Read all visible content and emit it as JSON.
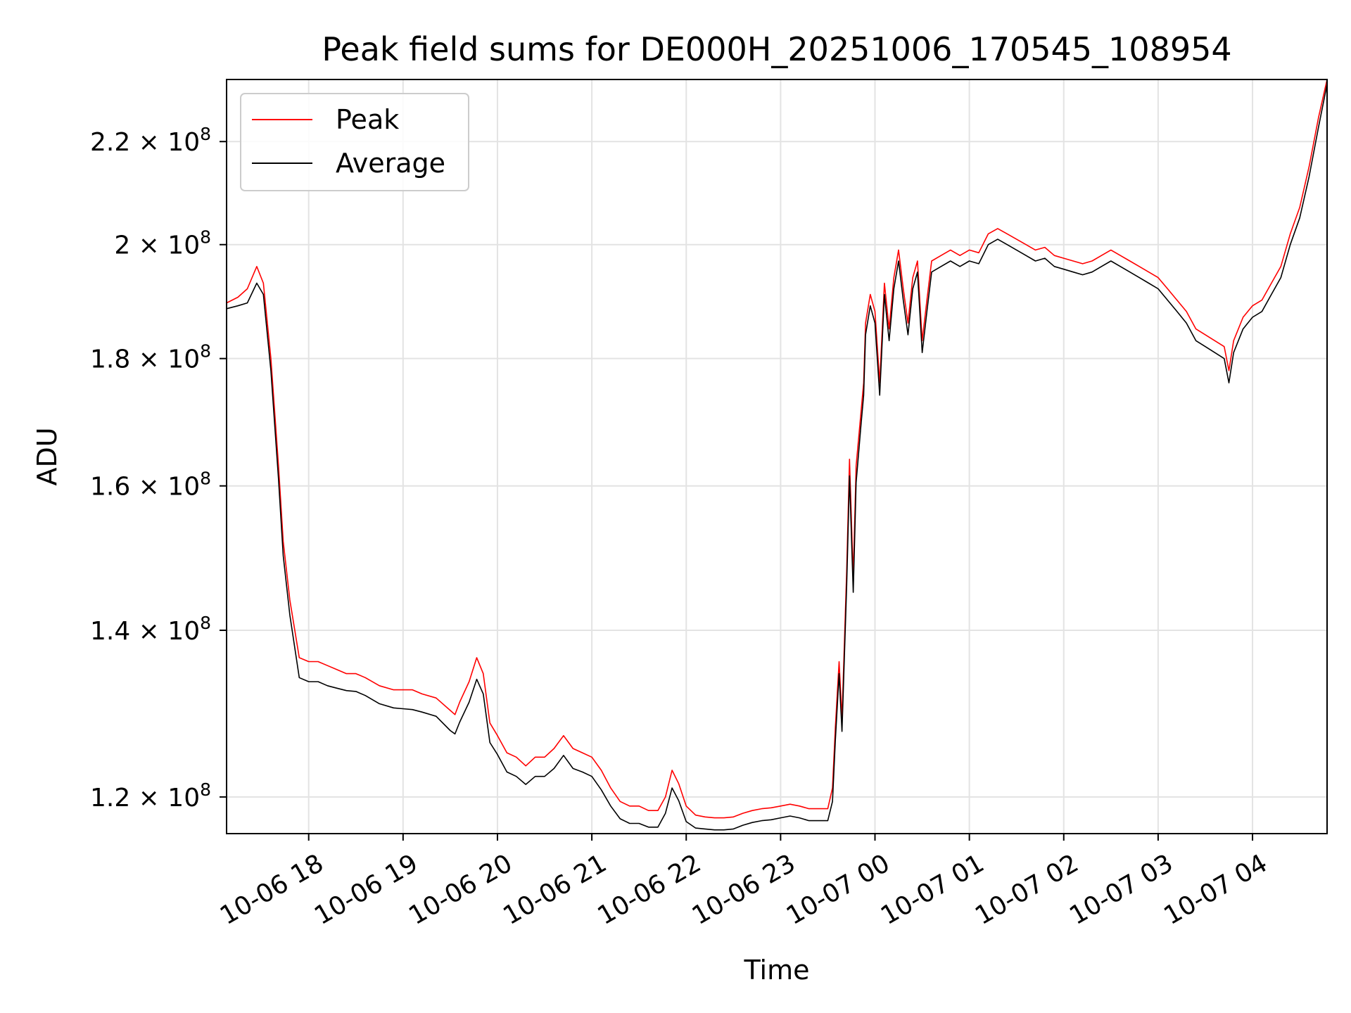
{
  "chart_data": {
    "type": "line",
    "title": "Peak field sums for DE000H_20251006_170545_108954",
    "xlabel": "Time",
    "ylabel": "ADU",
    "x_unit": "hours since 2025-10-06 00:00",
    "xlim": [
      17.13,
      28.79
    ],
    "ylim": [
      116000000,
      233000000
    ],
    "yscale": "log",
    "grid": true,
    "legend_position": "top-left",
    "x_ticks": [
      {
        "value": 18,
        "label": "10-06 18"
      },
      {
        "value": 19,
        "label": "10-06 19"
      },
      {
        "value": 20,
        "label": "10-06 20"
      },
      {
        "value": 21,
        "label": "10-06 21"
      },
      {
        "value": 22,
        "label": "10-06 22"
      },
      {
        "value": 23,
        "label": "10-06 23"
      },
      {
        "value": 24,
        "label": "10-07 00"
      },
      {
        "value": 25,
        "label": "10-07 01"
      },
      {
        "value": 26,
        "label": "10-07 02"
      },
      {
        "value": 27,
        "label": "10-07 03"
      },
      {
        "value": 28,
        "label": "10-07 04"
      }
    ],
    "y_ticks": [
      {
        "value": 120000000,
        "mantissa": "1.2",
        "exponent": "8"
      },
      {
        "value": 140000000,
        "mantissa": "1.4",
        "exponent": "8"
      },
      {
        "value": 160000000,
        "mantissa": "1.6",
        "exponent": "8"
      },
      {
        "value": 180000000,
        "mantissa": "1.8",
        "exponent": "8"
      },
      {
        "value": 200000000,
        "mantissa": "2",
        "exponent": "8"
      },
      {
        "value": 220000000,
        "mantissa": "2.2",
        "exponent": "8"
      }
    ],
    "series": [
      {
        "name": "Peak",
        "color": "#ff0000",
        "points": [
          [
            17.13,
            189500000
          ],
          [
            17.25,
            190500000
          ],
          [
            17.35,
            192000000
          ],
          [
            17.45,
            196000000
          ],
          [
            17.52,
            193000000
          ],
          [
            17.6,
            180000000
          ],
          [
            17.68,
            163000000
          ],
          [
            17.73,
            152000000
          ],
          [
            17.8,
            144000000
          ],
          [
            17.9,
            136500000
          ],
          [
            18.0,
            136000000
          ],
          [
            18.1,
            136000000
          ],
          [
            18.2,
            135500000
          ],
          [
            18.3,
            135000000
          ],
          [
            18.4,
            134500000
          ],
          [
            18.5,
            134500000
          ],
          [
            18.6,
            134000000
          ],
          [
            18.75,
            133000000
          ],
          [
            18.9,
            132500000
          ],
          [
            19.0,
            132500000
          ],
          [
            19.1,
            132500000
          ],
          [
            19.2,
            132000000
          ],
          [
            19.35,
            131500000
          ],
          [
            19.5,
            130000000
          ],
          [
            19.55,
            129500000
          ],
          [
            19.6,
            131000000
          ],
          [
            19.7,
            133500000
          ],
          [
            19.78,
            136500000
          ],
          [
            19.85,
            134500000
          ],
          [
            19.92,
            128500000
          ],
          [
            20.0,
            127000000
          ],
          [
            20.1,
            125000000
          ],
          [
            20.2,
            124500000
          ],
          [
            20.3,
            123500000
          ],
          [
            20.4,
            124500000
          ],
          [
            20.5,
            124500000
          ],
          [
            20.6,
            125500000
          ],
          [
            20.7,
            127000000
          ],
          [
            20.8,
            125500000
          ],
          [
            20.9,
            125000000
          ],
          [
            21.0,
            124500000
          ],
          [
            21.1,
            123000000
          ],
          [
            21.2,
            121000000
          ],
          [
            21.3,
            119500000
          ],
          [
            21.4,
            119000000
          ],
          [
            21.5,
            119000000
          ],
          [
            21.6,
            118500000
          ],
          [
            21.7,
            118500000
          ],
          [
            21.78,
            120000000
          ],
          [
            21.85,
            123000000
          ],
          [
            21.92,
            121500000
          ],
          [
            22.0,
            119000000
          ],
          [
            22.1,
            118000000
          ],
          [
            22.2,
            117800000
          ],
          [
            22.3,
            117700000
          ],
          [
            22.4,
            117700000
          ],
          [
            22.5,
            117800000
          ],
          [
            22.6,
            118200000
          ],
          [
            22.7,
            118500000
          ],
          [
            22.8,
            118700000
          ],
          [
            22.9,
            118800000
          ],
          [
            23.0,
            119000000
          ],
          [
            23.1,
            119200000
          ],
          [
            23.2,
            119000000
          ],
          [
            23.3,
            118700000
          ],
          [
            23.5,
            118700000
          ],
          [
            23.55,
            121000000
          ],
          [
            23.58,
            128000000
          ],
          [
            23.62,
            136000000
          ],
          [
            23.65,
            129000000
          ],
          [
            23.7,
            148000000
          ],
          [
            23.73,
            164000000
          ],
          [
            23.77,
            147000000
          ],
          [
            23.8,
            163000000
          ],
          [
            23.85,
            171000000
          ],
          [
            23.88,
            176000000
          ],
          [
            23.9,
            186000000
          ],
          [
            23.95,
            191000000
          ],
          [
            24.0,
            188000000
          ],
          [
            24.05,
            176000000
          ],
          [
            24.1,
            193000000
          ],
          [
            24.15,
            185000000
          ],
          [
            24.2,
            194000000
          ],
          [
            24.25,
            199000000
          ],
          [
            24.3,
            192000000
          ],
          [
            24.35,
            186000000
          ],
          [
            24.4,
            194000000
          ],
          [
            24.45,
            197000000
          ],
          [
            24.5,
            183000000
          ],
          [
            24.55,
            190000000
          ],
          [
            24.6,
            197000000
          ],
          [
            24.7,
            198000000
          ],
          [
            24.8,
            199000000
          ],
          [
            24.9,
            198000000
          ],
          [
            25.0,
            199000000
          ],
          [
            25.1,
            198500000
          ],
          [
            25.2,
            202000000
          ],
          [
            25.3,
            203000000
          ],
          [
            25.4,
            202000000
          ],
          [
            25.5,
            201000000
          ],
          [
            25.6,
            200000000
          ],
          [
            25.7,
            199000000
          ],
          [
            25.8,
            199500000
          ],
          [
            25.9,
            198000000
          ],
          [
            26.0,
            197500000
          ],
          [
            26.1,
            197000000
          ],
          [
            26.2,
            196500000
          ],
          [
            26.3,
            197000000
          ],
          [
            26.4,
            198000000
          ],
          [
            26.5,
            199000000
          ],
          [
            26.6,
            198000000
          ],
          [
            26.7,
            197000000
          ],
          [
            26.8,
            196000000
          ],
          [
            26.9,
            195000000
          ],
          [
            27.0,
            194000000
          ],
          [
            27.1,
            192000000
          ],
          [
            27.2,
            190000000
          ],
          [
            27.3,
            188000000
          ],
          [
            27.4,
            185000000
          ],
          [
            27.5,
            184000000
          ],
          [
            27.6,
            183000000
          ],
          [
            27.7,
            182000000
          ],
          [
            27.75,
            178000000
          ],
          [
            27.8,
            183000000
          ],
          [
            27.9,
            187000000
          ],
          [
            28.0,
            189000000
          ],
          [
            28.1,
            190000000
          ],
          [
            28.2,
            193000000
          ],
          [
            28.3,
            196000000
          ],
          [
            28.4,
            202000000
          ],
          [
            28.5,
            207000000
          ],
          [
            28.6,
            215000000
          ],
          [
            28.7,
            225000000
          ],
          [
            28.79,
            233000000
          ]
        ]
      },
      {
        "name": "Average",
        "color": "#000000",
        "points": [
          [
            17.13,
            188500000
          ],
          [
            17.25,
            189000000
          ],
          [
            17.35,
            189500000
          ],
          [
            17.45,
            193000000
          ],
          [
            17.52,
            191000000
          ],
          [
            17.6,
            178000000
          ],
          [
            17.68,
            161000000
          ],
          [
            17.73,
            150000000
          ],
          [
            17.8,
            142000000
          ],
          [
            17.9,
            134000000
          ],
          [
            18.0,
            133500000
          ],
          [
            18.1,
            133500000
          ],
          [
            18.2,
            133000000
          ],
          [
            18.3,
            132700000
          ],
          [
            18.4,
            132400000
          ],
          [
            18.5,
            132300000
          ],
          [
            18.6,
            131800000
          ],
          [
            18.75,
            130800000
          ],
          [
            18.9,
            130300000
          ],
          [
            19.0,
            130200000
          ],
          [
            19.1,
            130100000
          ],
          [
            19.2,
            129800000
          ],
          [
            19.35,
            129300000
          ],
          [
            19.5,
            127600000
          ],
          [
            19.55,
            127200000
          ],
          [
            19.6,
            128600000
          ],
          [
            19.7,
            131000000
          ],
          [
            19.78,
            133800000
          ],
          [
            19.85,
            132000000
          ],
          [
            19.92,
            126200000
          ],
          [
            20.0,
            124800000
          ],
          [
            20.1,
            122800000
          ],
          [
            20.2,
            122300000
          ],
          [
            20.3,
            121400000
          ],
          [
            20.4,
            122300000
          ],
          [
            20.5,
            122300000
          ],
          [
            20.6,
            123200000
          ],
          [
            20.7,
            124700000
          ],
          [
            20.8,
            123200000
          ],
          [
            20.9,
            122800000
          ],
          [
            21.0,
            122300000
          ],
          [
            21.1,
            120800000
          ],
          [
            21.2,
            119000000
          ],
          [
            21.3,
            117600000
          ],
          [
            21.4,
            117100000
          ],
          [
            21.5,
            117100000
          ],
          [
            21.6,
            116700000
          ],
          [
            21.7,
            116700000
          ],
          [
            21.78,
            118200000
          ],
          [
            21.85,
            121000000
          ],
          [
            21.92,
            119600000
          ],
          [
            22.0,
            117300000
          ],
          [
            22.1,
            116600000
          ],
          [
            22.2,
            116500000
          ],
          [
            22.3,
            116400000
          ],
          [
            22.4,
            116400000
          ],
          [
            22.5,
            116500000
          ],
          [
            22.6,
            116900000
          ],
          [
            22.7,
            117200000
          ],
          [
            22.8,
            117400000
          ],
          [
            22.9,
            117500000
          ],
          [
            23.0,
            117700000
          ],
          [
            23.1,
            117900000
          ],
          [
            23.2,
            117700000
          ],
          [
            23.3,
            117400000
          ],
          [
            23.5,
            117400000
          ],
          [
            23.55,
            119500000
          ],
          [
            23.58,
            126500000
          ],
          [
            23.62,
            134500000
          ],
          [
            23.65,
            127500000
          ],
          [
            23.7,
            146000000
          ],
          [
            23.73,
            161500000
          ],
          [
            23.77,
            145000000
          ],
          [
            23.8,
            160500000
          ],
          [
            23.85,
            169000000
          ],
          [
            23.88,
            174000000
          ],
          [
            23.9,
            184000000
          ],
          [
            23.95,
            189000000
          ],
          [
            24.0,
            186000000
          ],
          [
            24.05,
            174000000
          ],
          [
            24.1,
            191000000
          ],
          [
            24.15,
            183000000
          ],
          [
            24.2,
            192000000
          ],
          [
            24.25,
            197000000
          ],
          [
            24.3,
            190000000
          ],
          [
            24.35,
            184000000
          ],
          [
            24.4,
            192000000
          ],
          [
            24.45,
            195000000
          ],
          [
            24.5,
            181000000
          ],
          [
            24.55,
            188000000
          ],
          [
            24.6,
            195000000
          ],
          [
            24.7,
            196000000
          ],
          [
            24.8,
            197000000
          ],
          [
            24.9,
            196000000
          ],
          [
            25.0,
            197000000
          ],
          [
            25.1,
            196500000
          ],
          [
            25.2,
            200000000
          ],
          [
            25.3,
            201000000
          ],
          [
            25.4,
            200000000
          ],
          [
            25.5,
            199000000
          ],
          [
            25.6,
            198000000
          ],
          [
            25.7,
            197000000
          ],
          [
            25.8,
            197500000
          ],
          [
            25.9,
            196000000
          ],
          [
            26.0,
            195500000
          ],
          [
            26.1,
            195000000
          ],
          [
            26.2,
            194500000
          ],
          [
            26.3,
            195000000
          ],
          [
            26.4,
            196000000
          ],
          [
            26.5,
            197000000
          ],
          [
            26.6,
            196000000
          ],
          [
            26.7,
            195000000
          ],
          [
            26.8,
            194000000
          ],
          [
            26.9,
            193000000
          ],
          [
            27.0,
            192000000
          ],
          [
            27.1,
            190000000
          ],
          [
            27.2,
            188000000
          ],
          [
            27.3,
            186000000
          ],
          [
            27.4,
            183000000
          ],
          [
            27.5,
            182000000
          ],
          [
            27.6,
            181000000
          ],
          [
            27.7,
            180000000
          ],
          [
            27.75,
            176000000
          ],
          [
            27.8,
            181000000
          ],
          [
            27.9,
            185000000
          ],
          [
            28.0,
            187000000
          ],
          [
            28.1,
            188000000
          ],
          [
            28.2,
            191000000
          ],
          [
            28.3,
            194000000
          ],
          [
            28.4,
            200000000
          ],
          [
            28.5,
            205000000
          ],
          [
            28.6,
            213000000
          ],
          [
            28.7,
            223000000
          ],
          [
            28.79,
            232000000
          ]
        ]
      }
    ]
  }
}
